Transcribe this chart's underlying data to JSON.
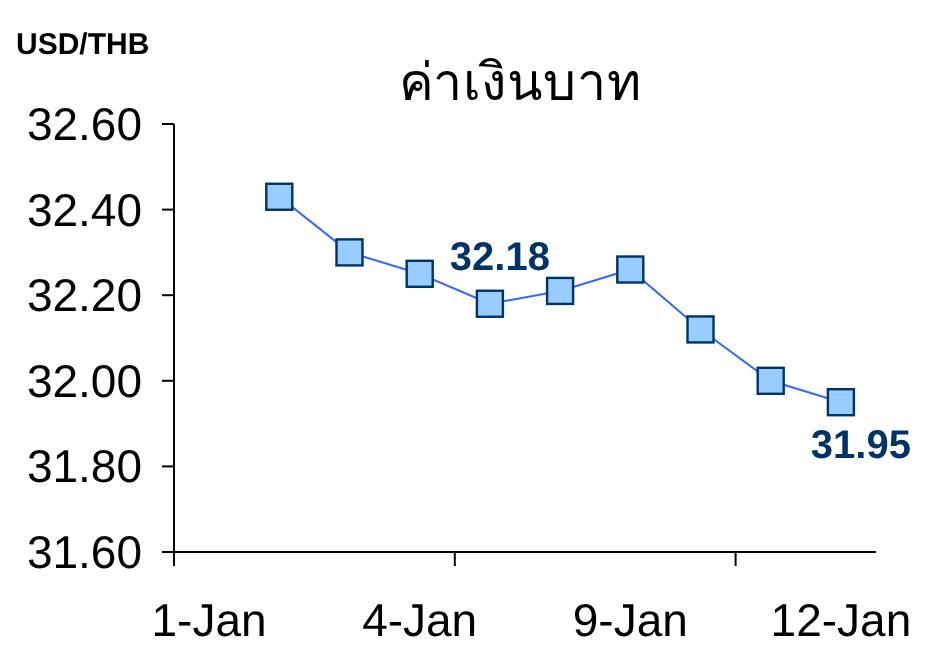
{
  "chart_data": {
    "type": "line",
    "title": "ค่าเงินบาท",
    "ylabel": "USD/THB",
    "categories": [
      "1-Jan",
      null,
      null,
      "4-Jan",
      null,
      null,
      "9-Jan",
      null,
      null,
      "12-Jan"
    ],
    "series": [
      {
        "color": "#3366ff",
        "values": [
          null,
          32.43,
          32.3,
          32.25,
          32.18,
          32.21,
          32.26,
          32.12,
          32.0,
          31.95
        ],
        "value_labels": [
          null,
          null,
          null,
          null,
          "32.18",
          null,
          null,
          null,
          null,
          "31.95"
        ]
      }
    ],
    "ylim": [
      31.6,
      32.6
    ],
    "yticks": [
      {
        "value": 31.6,
        "label": "31.60"
      },
      {
        "value": 31.8,
        "label": "31.80"
      },
      {
        "value": 32.0,
        "label": "32.00"
      },
      {
        "value": 32.2,
        "label": "32.20"
      },
      {
        "value": 32.4,
        "label": "32.40"
      },
      {
        "value": 32.6,
        "label": "32.60"
      }
    ],
    "marker": "square",
    "grid": false
  }
}
